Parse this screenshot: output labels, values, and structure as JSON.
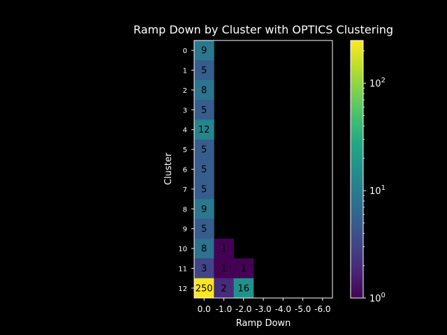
{
  "chart_data": {
    "type": "heatmap",
    "title": "Ramp Down by Cluster with OPTICS Clustering",
    "xlabel": "Ramp Down",
    "ylabel": "Cluster",
    "x_categories": [
      "0.0",
      "-1.0",
      "-2.0",
      "-3.0",
      "-4.0",
      "-5.0",
      "-6.0"
    ],
    "y_categories": [
      "0",
      "1",
      "2",
      "3",
      "4",
      "5",
      "6",
      "7",
      "8",
      "9",
      "10",
      "11",
      "12"
    ],
    "values": [
      [
        9,
        null,
        null,
        null,
        null,
        null,
        null
      ],
      [
        5,
        null,
        null,
        null,
        null,
        null,
        null
      ],
      [
        8,
        null,
        null,
        null,
        null,
        null,
        null
      ],
      [
        5,
        null,
        null,
        null,
        null,
        null,
        null
      ],
      [
        12,
        null,
        null,
        null,
        null,
        null,
        null
      ],
      [
        5,
        null,
        null,
        null,
        null,
        null,
        null
      ],
      [
        5,
        null,
        null,
        null,
        null,
        null,
        null
      ],
      [
        5,
        null,
        null,
        null,
        null,
        null,
        null
      ],
      [
        9,
        null,
        null,
        null,
        null,
        null,
        null
      ],
      [
        5,
        null,
        null,
        null,
        null,
        null,
        null
      ],
      [
        8,
        1,
        null,
        null,
        null,
        null,
        null
      ],
      [
        3,
        1,
        1,
        null,
        null,
        null,
        null
      ],
      [
        250,
        2,
        16,
        null,
        null,
        null,
        null
      ]
    ],
    "colorbar": {
      "scale": "log",
      "range": [
        1,
        250
      ],
      "colormap": "viridis",
      "ticks": [
        {
          "value": 1,
          "base": "10",
          "exp": "0"
        },
        {
          "value": 10,
          "base": "10",
          "exp": "1"
        },
        {
          "value": 100,
          "base": "10",
          "exp": "2"
        }
      ]
    },
    "background": "#000000"
  }
}
